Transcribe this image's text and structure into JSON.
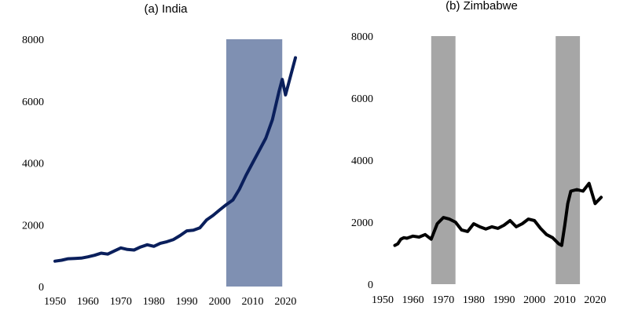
{
  "chart_data": [
    {
      "type": "line",
      "title": "(a) India",
      "xlabel": "",
      "ylabel": "",
      "xlim": [
        1950,
        2023
      ],
      "ylim": [
        0,
        8000
      ],
      "x_ticks": [
        "1950",
        "1960",
        "1970",
        "1980",
        "1990",
        "2000",
        "2010",
        "2020"
      ],
      "y_ticks": [
        "0",
        "2000",
        "4000",
        "6000",
        "8000"
      ],
      "grid": false,
      "line_color": "#0a1f5c",
      "shaded_color": "#7f90b2",
      "shaded_ranges": [
        [
          2002,
          2019
        ]
      ],
      "series": [
        {
          "x": [
            1950,
            1952,
            1954,
            1956,
            1958,
            1960,
            1962,
            1964,
            1966,
            1968,
            1970,
            1972,
            1974,
            1976,
            1978,
            1980,
            1982,
            1984,
            1986,
            1988,
            1990,
            1992,
            1994,
            1996,
            1998,
            2000,
            2002,
            2004,
            2006,
            2008,
            2010,
            2012,
            2014,
            2016,
            2018,
            2019,
            2020,
            2021,
            2022,
            2023
          ],
          "y": [
            820,
            850,
            900,
            910,
            920,
            960,
            1010,
            1080,
            1050,
            1150,
            1250,
            1200,
            1180,
            1280,
            1350,
            1300,
            1400,
            1450,
            1520,
            1650,
            1800,
            1820,
            1900,
            2150,
            2300,
            2480,
            2650,
            2800,
            3150,
            3600,
            4000,
            4400,
            4800,
            5400,
            6300,
            6700,
            6200,
            6600,
            7000,
            7400
          ]
        }
      ]
    },
    {
      "type": "line",
      "title": "(b) Zimbabwe",
      "xlabel": "",
      "ylabel": "",
      "xlim": [
        1950,
        2023
      ],
      "ylim": [
        0,
        8000
      ],
      "x_ticks": [
        "1950",
        "1960",
        "1970",
        "1980",
        "1990",
        "2000",
        "2010",
        "2020"
      ],
      "y_ticks": [
        "0",
        "2000",
        "4000",
        "6000",
        "8000"
      ],
      "grid": false,
      "line_color": "#000000",
      "shaded_color": "#a6a6a6",
      "shaded_ranges": [
        [
          1966,
          1974
        ],
        [
          2007,
          2015
        ]
      ],
      "series": [
        {
          "x": [
            1954,
            1955,
            1956,
            1957,
            1958,
            1960,
            1962,
            1964,
            1966,
            1968,
            1970,
            1972,
            1974,
            1976,
            1978,
            1980,
            1982,
            1984,
            1986,
            1988,
            1990,
            1992,
            1994,
            1996,
            1998,
            2000,
            2002,
            2004,
            2006,
            2008,
            2009,
            2010,
            2011,
            2012,
            2014,
            2016,
            2018,
            2020,
            2022
          ],
          "y": [
            1250,
            1300,
            1450,
            1500,
            1480,
            1550,
            1520,
            1600,
            1450,
            1950,
            2150,
            2100,
            2000,
            1750,
            1700,
            1950,
            1850,
            1780,
            1850,
            1800,
            1900,
            2050,
            1850,
            1950,
            2100,
            2050,
            1800,
            1600,
            1500,
            1300,
            1250,
            1900,
            2600,
            3000,
            3050,
            3000,
            3250,
            2600,
            2800
          ]
        }
      ]
    }
  ]
}
